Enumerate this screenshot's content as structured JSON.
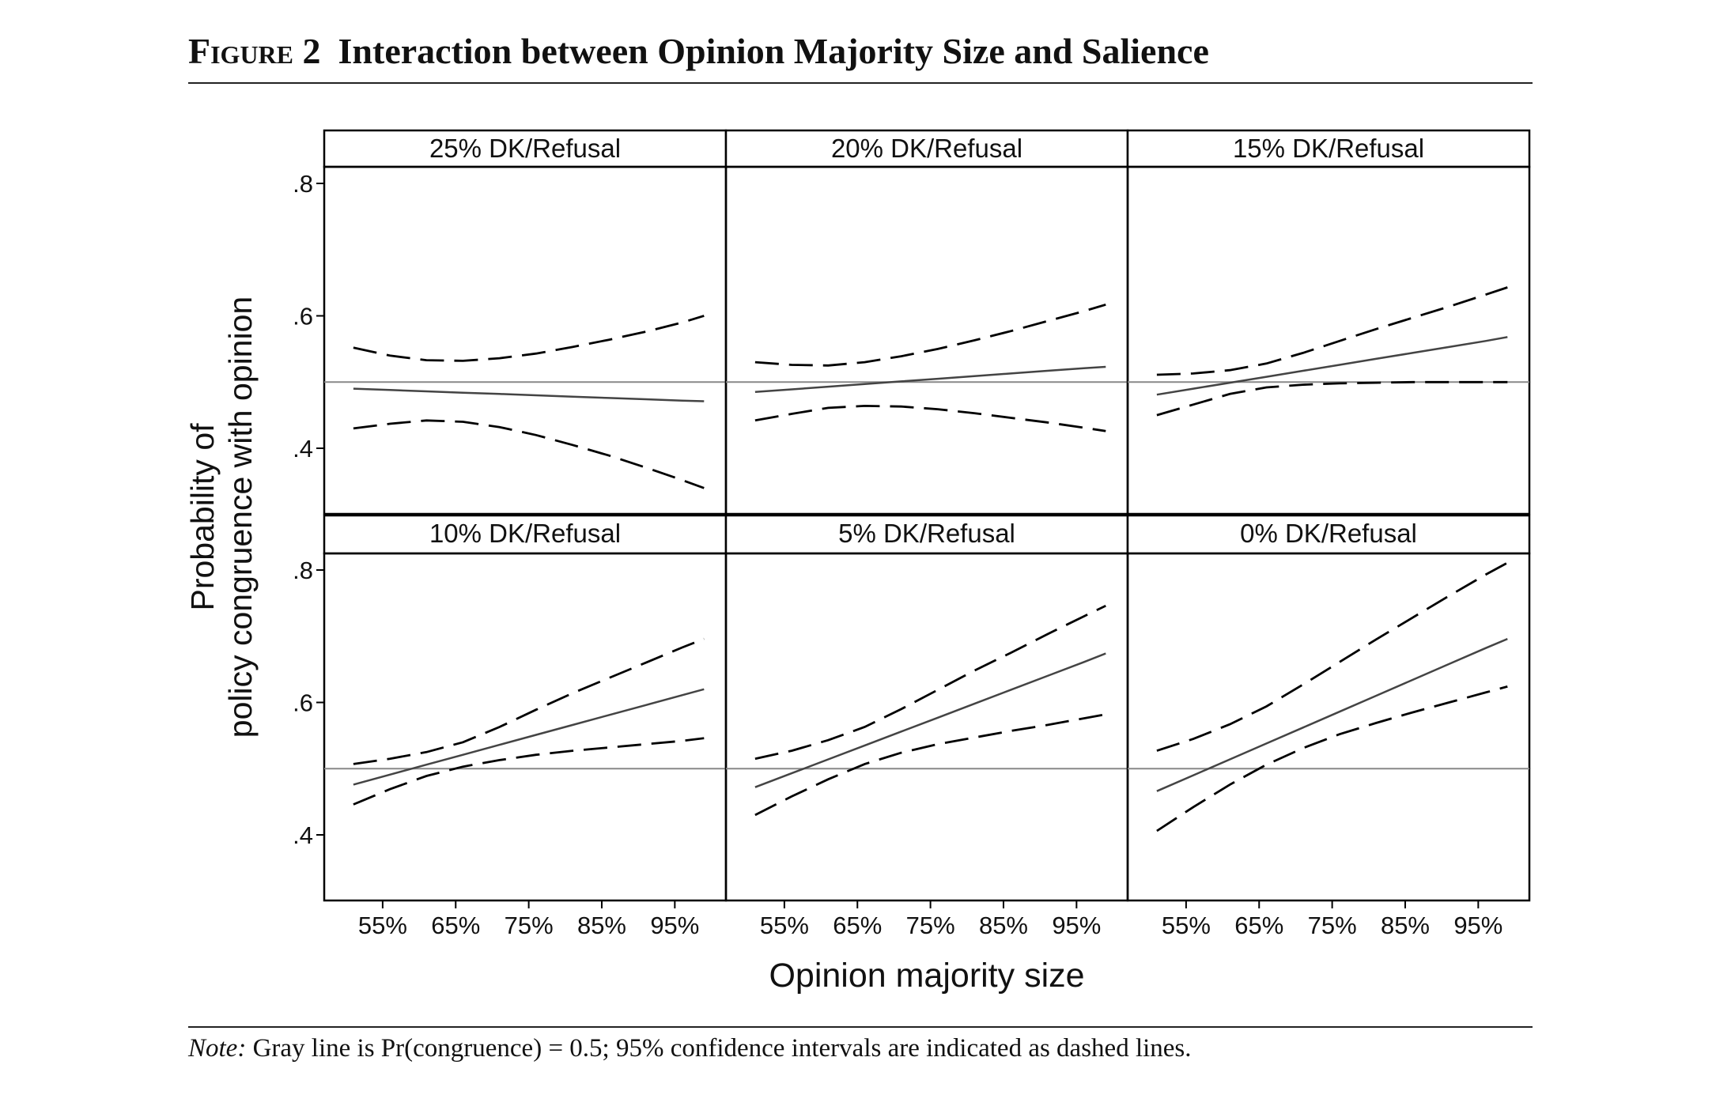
{
  "figure": {
    "label": "Figure 2",
    "title": "Interaction between Opinion Majority Size and Salience"
  },
  "note": {
    "label": "Note:",
    "text": "Gray line is Pr(congruence) = 0.5; 95% confidence intervals are indicated as dashed lines."
  },
  "chart_data": {
    "type": "line",
    "layout": "small-multiples 3x2",
    "ylabel": [
      "Probability of",
      "policy congruence with opinion"
    ],
    "xlabel": "Opinion majority size",
    "x_ticks": [
      55,
      65,
      75,
      85,
      95
    ],
    "x_tick_labels": [
      "55%",
      "65%",
      "75%",
      "85%",
      "95%"
    ],
    "xlim": [
      47,
      102
    ],
    "y_ticks": [
      0.4,
      0.6,
      0.8
    ],
    "y_tick_labels": [
      ".4",
      ".6",
      ".8"
    ],
    "ylim": [
      0.32,
      0.83
    ],
    "reference_line": 0.5,
    "colors": {
      "estimate": "#444444",
      "ci": "#000000",
      "reference": "#888888"
    },
    "panels": [
      {
        "title": "25% DK/Refusal",
        "x": [
          51,
          56,
          61,
          66,
          71,
          76,
          81,
          86,
          91,
          96,
          99
        ],
        "estimate": [
          0.49,
          0.488,
          0.486,
          0.484,
          0.482,
          0.48,
          0.478,
          0.476,
          0.474,
          0.472,
          0.471
        ],
        "upper": [
          0.552,
          0.54,
          0.533,
          0.532,
          0.536,
          0.543,
          0.553,
          0.564,
          0.576,
          0.59,
          0.6
        ],
        "lower": [
          0.43,
          0.437,
          0.442,
          0.44,
          0.432,
          0.42,
          0.405,
          0.389,
          0.371,
          0.352,
          0.34
        ]
      },
      {
        "title": "20% DK/Refusal",
        "x": [
          51,
          56,
          61,
          66,
          71,
          76,
          81,
          86,
          91,
          96,
          99
        ],
        "estimate": [
          0.485,
          0.489,
          0.493,
          0.497,
          0.501,
          0.505,
          0.509,
          0.513,
          0.517,
          0.521,
          0.523
        ],
        "upper": [
          0.53,
          0.526,
          0.525,
          0.53,
          0.539,
          0.55,
          0.563,
          0.577,
          0.592,
          0.607,
          0.617
        ],
        "lower": [
          0.442,
          0.452,
          0.461,
          0.464,
          0.463,
          0.459,
          0.453,
          0.446,
          0.439,
          0.431,
          0.426
        ]
      },
      {
        "title": "15% DK/Refusal",
        "x": [
          51,
          56,
          61,
          66,
          71,
          76,
          81,
          86,
          91,
          96,
          99
        ],
        "estimate": [
          0.481,
          0.49,
          0.499,
          0.508,
          0.517,
          0.526,
          0.535,
          0.544,
          0.553,
          0.562,
          0.568
        ],
        "upper": [
          0.511,
          0.513,
          0.518,
          0.528,
          0.544,
          0.562,
          0.58,
          0.597,
          0.614,
          0.632,
          0.643
        ],
        "lower": [
          0.45,
          0.466,
          0.482,
          0.492,
          0.496,
          0.498,
          0.499,
          0.5,
          0.5,
          0.5,
          0.5
        ]
      },
      {
        "title": "10% DK/Refusal",
        "x": [
          51,
          56,
          61,
          66,
          71,
          76,
          81,
          86,
          91,
          96,
          99
        ],
        "estimate": [
          0.476,
          0.491,
          0.506,
          0.521,
          0.536,
          0.551,
          0.566,
          0.581,
          0.596,
          0.611,
          0.62
        ],
        "upper": [
          0.507,
          0.515,
          0.525,
          0.54,
          0.563,
          0.589,
          0.614,
          0.637,
          0.66,
          0.683,
          0.696
        ],
        "lower": [
          0.446,
          0.469,
          0.489,
          0.503,
          0.513,
          0.521,
          0.527,
          0.532,
          0.537,
          0.542,
          0.546
        ]
      },
      {
        "title": "5% DK/Refusal",
        "x": [
          51,
          56,
          61,
          66,
          71,
          76,
          81,
          86,
          91,
          96,
          99
        ],
        "estimate": [
          0.472,
          0.493,
          0.514,
          0.535,
          0.556,
          0.577,
          0.598,
          0.619,
          0.64,
          0.661,
          0.674
        ],
        "upper": [
          0.515,
          0.527,
          0.543,
          0.563,
          0.59,
          0.619,
          0.648,
          0.675,
          0.703,
          0.73,
          0.746
        ],
        "lower": [
          0.43,
          0.458,
          0.484,
          0.507,
          0.524,
          0.537,
          0.547,
          0.557,
          0.566,
          0.576,
          0.582
        ]
      },
      {
        "title": "0% DK/Refusal",
        "x": [
          51,
          56,
          61,
          66,
          71,
          76,
          81,
          86,
          91,
          96,
          99
        ],
        "estimate": [
          0.466,
          0.49,
          0.514,
          0.538,
          0.562,
          0.586,
          0.61,
          0.634,
          0.658,
          0.682,
          0.696
        ],
        "upper": [
          0.527,
          0.545,
          0.567,
          0.594,
          0.627,
          0.661,
          0.695,
          0.728,
          0.761,
          0.793,
          0.811
        ],
        "lower": [
          0.406,
          0.442,
          0.476,
          0.506,
          0.531,
          0.552,
          0.569,
          0.585,
          0.6,
          0.615,
          0.624
        ]
      }
    ]
  }
}
